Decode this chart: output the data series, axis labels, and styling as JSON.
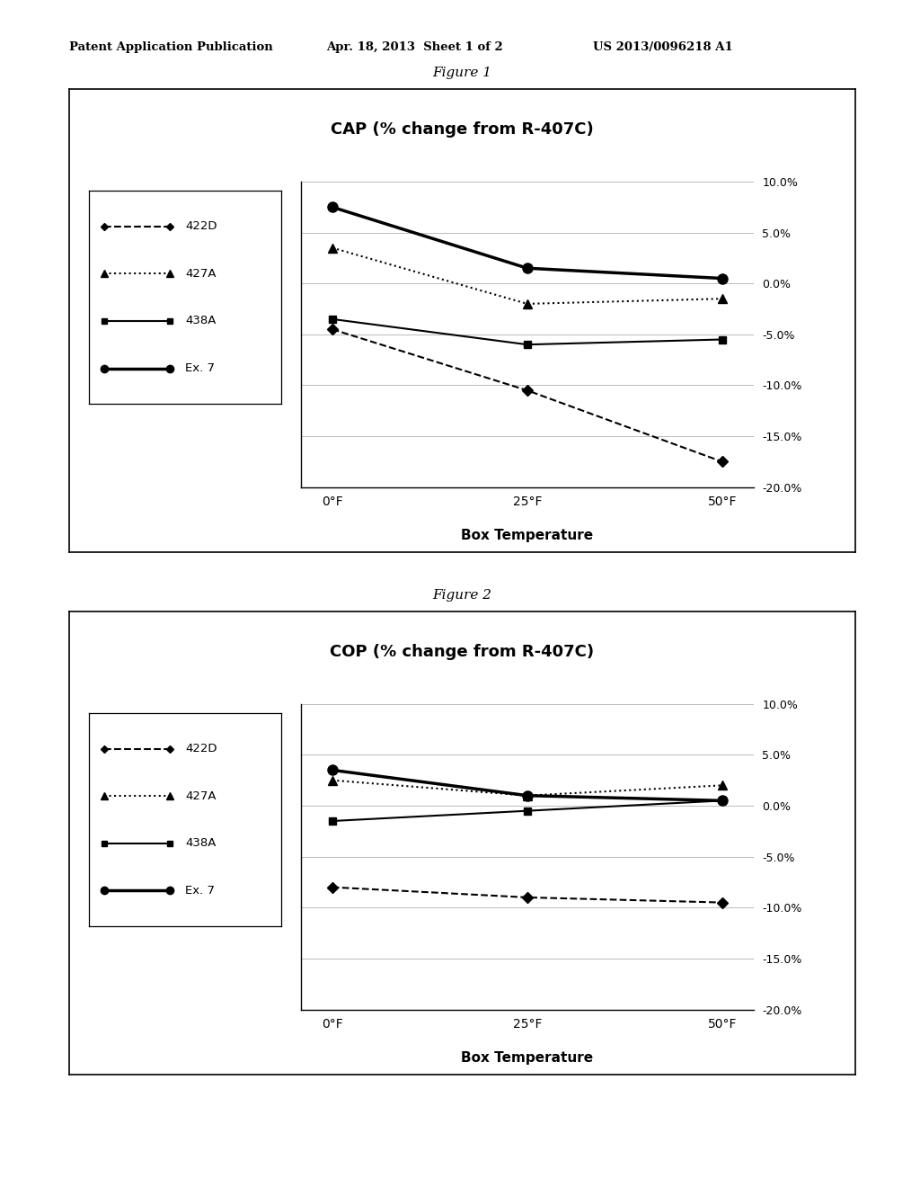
{
  "header_left": "Patent Application Publication",
  "header_mid": "Apr. 18, 2013  Sheet 1 of 2",
  "header_right": "US 2013/0096218 A1",
  "fig1_title": "Figure 1",
  "fig1_chart_title": "CAP (% change from R-407C)",
  "fig1_xlabel": "Box Temperature",
  "fig1_xticks": [
    "0°F",
    "25°F",
    "50°F"
  ],
  "fig1_xvals": [
    0,
    25,
    50
  ],
  "fig1_ylim": [
    -20.0,
    10.0
  ],
  "fig1_yticks": [
    10.0,
    5.0,
    0.0,
    -5.0,
    -10.0,
    -15.0,
    -20.0
  ],
  "fig1_series": [
    {
      "name": "422D",
      "y": [
        -4.5,
        -10.5,
        -17.5
      ],
      "linestyle": "dashed",
      "marker": "D",
      "linewidth": 1.5,
      "markersize": 6
    },
    {
      "name": "427A",
      "y": [
        3.5,
        -2.0,
        -1.5
      ],
      "linestyle": "dotted",
      "marker": "^",
      "linewidth": 1.5,
      "markersize": 7
    },
    {
      "name": "438A",
      "y": [
        -3.5,
        -6.0,
        -5.5
      ],
      "linestyle": "solid",
      "marker": "s",
      "linewidth": 1.5,
      "markersize": 6
    },
    {
      "name": "Ex. 7",
      "y": [
        7.5,
        1.5,
        0.5
      ],
      "linestyle": "solid",
      "marker": "o",
      "linewidth": 2.5,
      "markersize": 8
    }
  ],
  "fig2_title": "Figure 2",
  "fig2_chart_title": "COP (% change from R-407C)",
  "fig2_xlabel": "Box Temperature",
  "fig2_xticks": [
    "0°F",
    "25°F",
    "50°F"
  ],
  "fig2_xvals": [
    0,
    25,
    50
  ],
  "fig2_ylim": [
    -20.0,
    10.0
  ],
  "fig2_yticks": [
    10.0,
    5.0,
    0.0,
    -5.0,
    -10.0,
    -15.0,
    -20.0
  ],
  "fig2_series": [
    {
      "name": "422D",
      "y": [
        -8.0,
        -9.0,
        -9.5
      ],
      "linestyle": "dashed",
      "marker": "D",
      "linewidth": 1.5,
      "markersize": 6
    },
    {
      "name": "427A",
      "y": [
        2.5,
        1.0,
        2.0
      ],
      "linestyle": "dotted",
      "marker": "^",
      "linewidth": 1.5,
      "markersize": 7
    },
    {
      "name": "438A",
      "y": [
        -1.5,
        -0.5,
        0.5
      ],
      "linestyle": "solid",
      "marker": "s",
      "linewidth": 1.5,
      "markersize": 6
    },
    {
      "name": "Ex. 7",
      "y": [
        3.5,
        1.0,
        0.5
      ],
      "linestyle": "solid",
      "marker": "o",
      "linewidth": 2.5,
      "markersize": 8
    }
  ],
  "bg_color": "#ffffff",
  "grid_color": "#bbbbbb",
  "line_color": "#000000"
}
